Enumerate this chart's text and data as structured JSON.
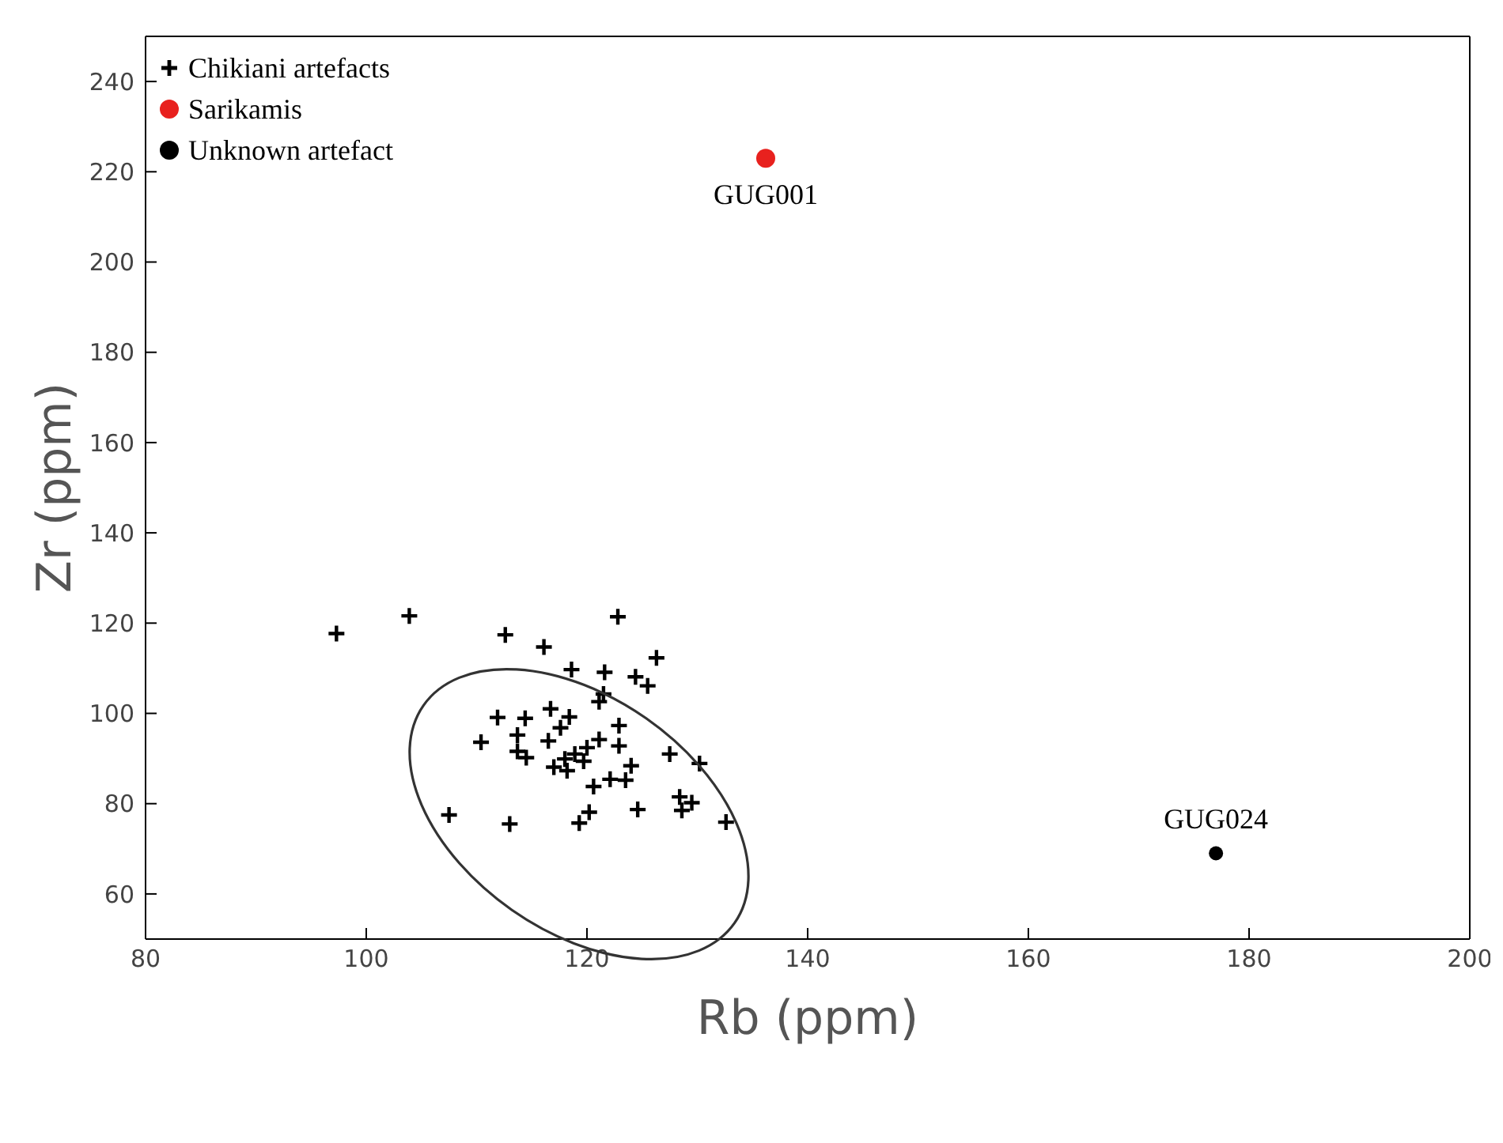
{
  "chart_data": {
    "type": "scatter",
    "xlabel": "Rb (ppm)",
    "ylabel": "Zr (ppm)",
    "xlim": [
      80,
      200
    ],
    "xticks": [
      80,
      100,
      120,
      140,
      160,
      180,
      200
    ],
    "ylim": [
      50,
      250
    ],
    "yticks": [
      60,
      80,
      100,
      120,
      140,
      160,
      180,
      200,
      220,
      240
    ],
    "grid": false,
    "legend": "top left",
    "series": [
      {
        "name": "Chikiani artefacts",
        "color": "#000000",
        "marker": "cross",
        "x": [
          97.3,
          103.9,
          122.8,
          112.6,
          116.1,
          126.3,
          118.6,
          121.6,
          124.4,
          125.5,
          121.5,
          121.1,
          116.7,
          118.4,
          111.9,
          114.4,
          117.6,
          122.9,
          113.7,
          110.4,
          116.5,
          121.1,
          120.0,
          122.9,
          113.7,
          114.5,
          118.9,
          118.0,
          119.7,
          127.5,
          130.2,
          117.0,
          118.2,
          124.0,
          122.1,
          123.5,
          120.6,
          128.4,
          129.5,
          128.6,
          120.2,
          124.6,
          119.3,
          107.5,
          113.0,
          132.6
        ],
        "values": [
          117.7,
          121.6,
          121.4,
          117.4,
          114.7,
          112.3,
          109.7,
          109.1,
          108.1,
          106.1,
          104.3,
          102.6,
          101.0,
          99.2,
          99.1,
          98.9,
          96.8,
          97.3,
          95.2,
          93.6,
          93.9,
          94.2,
          92.4,
          92.8,
          91.6,
          90.2,
          91.0,
          89.9,
          89.4,
          91.0,
          88.9,
          88.1,
          87.3,
          88.4,
          85.4,
          85.2,
          83.8,
          81.5,
          80.2,
          78.5,
          78.1,
          78.7,
          75.7,
          77.5,
          75.5,
          75.9
        ]
      },
      {
        "name": "Sarikamis",
        "color": "#e8211e",
        "marker": "circle",
        "x": [
          136.2
        ],
        "values": [
          223
        ]
      },
      {
        "name": "Unknown artefact",
        "color": "#000000",
        "marker": "circle",
        "x": [
          177
        ],
        "values": [
          69
        ]
      }
    ],
    "annotations": [
      {
        "text": "GUG001",
        "x": 136.2,
        "y": 223
      },
      {
        "text": "GUG024",
        "x": 177,
        "y": 69
      }
    ]
  }
}
